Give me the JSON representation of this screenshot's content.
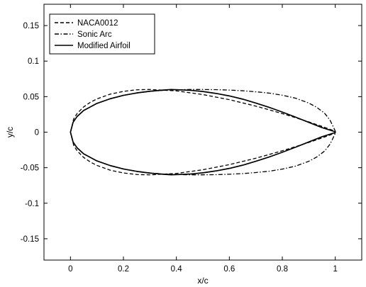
{
  "chart_data": {
    "type": "line",
    "xlabel": "x/c",
    "ylabel": "y/c",
    "xlim": [
      -0.1,
      1.1
    ],
    "ylim": [
      -0.18,
      0.18
    ],
    "xticks": [
      0,
      0.2,
      0.4,
      0.6,
      0.8,
      1
    ],
    "xtick_labels": [
      "0",
      "0.2",
      "0.4",
      "0.6",
      "0.8",
      "1"
    ],
    "yticks": [
      -0.15,
      -0.1,
      -0.05,
      0,
      0.05,
      0.1,
      0.15
    ],
    "ytick_labels": [
      "-0.15",
      "-0.1",
      "-0.05",
      "0",
      "0.05",
      "0.1",
      "0.15"
    ],
    "grid": false,
    "legend_position": "top-left",
    "series": [
      {
        "name": "NACA0012",
        "dash": "dashed",
        "color": "#000000",
        "x": [
          0,
          0.0125,
          0.025,
          0.05,
          0.075,
          0.1,
          0.15,
          0.2,
          0.25,
          0.3,
          0.4,
          0.5,
          0.6,
          0.7,
          0.8,
          0.9,
          0.95,
          1.0
        ],
        "y": [
          0,
          0.0189,
          0.0262,
          0.0356,
          0.042,
          0.0468,
          0.0535,
          0.0574,
          0.0596,
          0.0601,
          0.0581,
          0.0529,
          0.0457,
          0.0367,
          0.0262,
          0.0145,
          0.0081,
          0.0013
        ]
      },
      {
        "name": "Sonic Arc",
        "dash": "dashdot",
        "color": "#000000",
        "x": [
          0,
          0.01,
          0.025,
          0.05,
          0.1,
          0.15,
          0.2,
          0.25,
          0.3,
          0.35,
          0.4,
          0.45,
          0.5,
          0.55,
          0.6,
          0.65,
          0.7,
          0.75,
          0.8,
          0.85,
          0.9,
          0.93,
          0.96,
          0.98,
          0.99,
          1.0
        ],
        "y": [
          0,
          0.014,
          0.022,
          0.0305,
          0.0405,
          0.047,
          0.0518,
          0.055,
          0.0574,
          0.0589,
          0.0596,
          0.06,
          0.06,
          0.0598,
          0.0592,
          0.0583,
          0.0568,
          0.055,
          0.052,
          0.0478,
          0.041,
          0.035,
          0.0265,
          0.017,
          0.0095,
          0.0015
        ]
      },
      {
        "name": "Modified Airfoil",
        "dash": "solid",
        "color": "#000000",
        "x": [
          0,
          0.01,
          0.025,
          0.05,
          0.1,
          0.15,
          0.2,
          0.25,
          0.3,
          0.35,
          0.38,
          0.45,
          0.5,
          0.55,
          0.6,
          0.65,
          0.7,
          0.75,
          0.8,
          0.85,
          0.9,
          0.95,
          1.0
        ],
        "y": [
          0,
          0.014,
          0.022,
          0.0305,
          0.0405,
          0.047,
          0.0518,
          0.0552,
          0.0576,
          0.0592,
          0.06,
          0.059,
          0.0572,
          0.0545,
          0.051,
          0.0465,
          0.041,
          0.035,
          0.0283,
          0.0212,
          0.0138,
          0.0064,
          0.0005
        ]
      }
    ]
  }
}
